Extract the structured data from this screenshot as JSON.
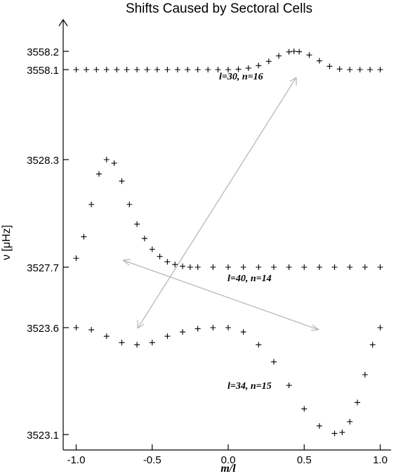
{
  "chart_data": {
    "type": "scatter",
    "title": "Shifts Caused by Sectoral Cells",
    "xlabel": "m/l",
    "ylabel": "ν [μHz]",
    "xlim": [
      -1.1,
      1.05
    ],
    "x_ticks": [
      "-1.0",
      "-0.5",
      "0.0",
      "0.5",
      "1.0"
    ],
    "y_ticks": [
      "3558.2",
      "3558.1",
      "3528.3",
      "3527.7",
      "3523.6",
      "3523.1"
    ],
    "marker": "+",
    "series": [
      {
        "label": "l=30, n=16",
        "axis_band": "top",
        "ylim": [
          3558.1,
          3558.2
        ],
        "points": [
          [
            -1.0,
            3558.1
          ],
          [
            -0.933,
            3558.1
          ],
          [
            -0.867,
            3558.1
          ],
          [
            -0.8,
            3558.1
          ],
          [
            -0.733,
            3558.1
          ],
          [
            -0.667,
            3558.1
          ],
          [
            -0.6,
            3558.1
          ],
          [
            -0.533,
            3558.1
          ],
          [
            -0.467,
            3558.1
          ],
          [
            -0.4,
            3558.1
          ],
          [
            -0.333,
            3558.1
          ],
          [
            -0.267,
            3558.1
          ],
          [
            -0.2,
            3558.1
          ],
          [
            -0.133,
            3558.1
          ],
          [
            -0.067,
            3558.1
          ],
          [
            0.0,
            3558.1
          ],
          [
            0.067,
            3558.102
          ],
          [
            0.133,
            3558.108
          ],
          [
            0.2,
            3558.122
          ],
          [
            0.267,
            3558.145
          ],
          [
            0.333,
            3558.175
          ],
          [
            0.4,
            3558.197
          ],
          [
            0.433,
            3558.2
          ],
          [
            0.467,
            3558.198
          ],
          [
            0.533,
            3558.18
          ],
          [
            0.6,
            3558.148
          ],
          [
            0.667,
            3558.118
          ],
          [
            0.733,
            3558.103
          ],
          [
            0.8,
            3558.1
          ],
          [
            0.867,
            3558.1
          ],
          [
            0.933,
            3558.1
          ],
          [
            1.0,
            3558.1
          ]
        ]
      },
      {
        "label": "l=40, n=14",
        "axis_band": "middle",
        "ylim": [
          3527.7,
          3528.3
        ],
        "points": [
          [
            -1.0,
            3527.75
          ],
          [
            -0.95,
            3527.87
          ],
          [
            -0.9,
            3528.05
          ],
          [
            -0.85,
            3528.22
          ],
          [
            -0.8,
            3528.3
          ],
          [
            -0.75,
            3528.28
          ],
          [
            -0.7,
            3528.18
          ],
          [
            -0.65,
            3528.05
          ],
          [
            -0.6,
            3527.94
          ],
          [
            -0.55,
            3527.86
          ],
          [
            -0.5,
            3527.8
          ],
          [
            -0.45,
            3527.76
          ],
          [
            -0.4,
            3527.73
          ],
          [
            -0.35,
            3527.715
          ],
          [
            -0.3,
            3527.705
          ],
          [
            -0.25,
            3527.7
          ],
          [
            -0.2,
            3527.7
          ],
          [
            -0.1,
            3527.7
          ],
          [
            0.0,
            3527.7
          ],
          [
            0.1,
            3527.7
          ],
          [
            0.2,
            3527.7
          ],
          [
            0.3,
            3527.7
          ],
          [
            0.4,
            3527.7
          ],
          [
            0.5,
            3527.7
          ],
          [
            0.6,
            3527.7
          ],
          [
            0.7,
            3527.7
          ],
          [
            0.8,
            3527.7
          ],
          [
            0.9,
            3527.7
          ],
          [
            1.0,
            3527.7
          ]
        ]
      },
      {
        "label": "l=34, n=15",
        "axis_band": "bottom",
        "ylim": [
          3523.1,
          3523.6
        ],
        "points": [
          [
            -1.0,
            3523.6
          ],
          [
            -0.9,
            3523.59
          ],
          [
            -0.8,
            3523.56
          ],
          [
            -0.7,
            3523.53
          ],
          [
            -0.6,
            3523.52
          ],
          [
            -0.5,
            3523.53
          ],
          [
            -0.4,
            3523.56
          ],
          [
            -0.3,
            3523.58
          ],
          [
            -0.2,
            3523.595
          ],
          [
            -0.1,
            3523.6
          ],
          [
            0.0,
            3523.6
          ],
          [
            0.1,
            3523.58
          ],
          [
            0.2,
            3523.52
          ],
          [
            0.3,
            3523.44
          ],
          [
            0.4,
            3523.33
          ],
          [
            0.5,
            3523.22
          ],
          [
            0.6,
            3523.14
          ],
          [
            0.7,
            3523.105
          ],
          [
            0.75,
            3523.11
          ],
          [
            0.8,
            3523.16
          ],
          [
            0.85,
            3523.25
          ],
          [
            0.9,
            3523.38
          ],
          [
            0.95,
            3523.52
          ],
          [
            1.0,
            3523.6
          ]
        ]
      }
    ],
    "arrows": "two light-gray double-headed arrows linking the curves"
  }
}
